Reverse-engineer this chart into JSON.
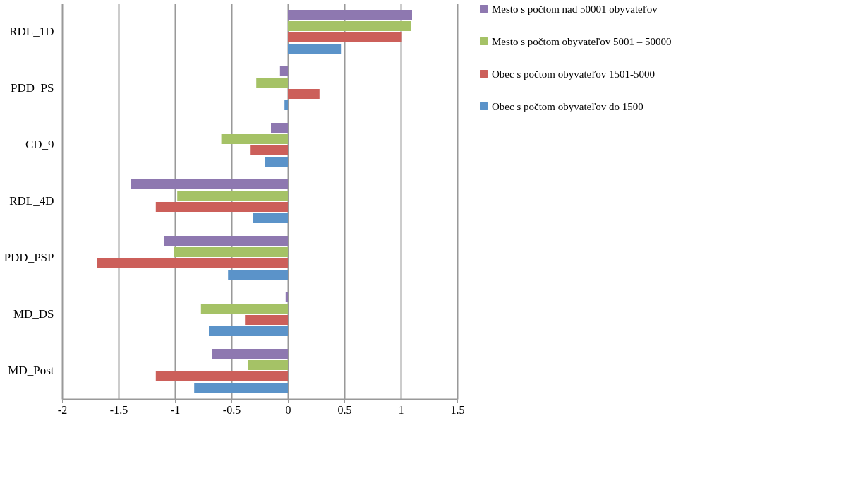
{
  "chart_data": {
    "type": "bar",
    "orientation": "horizontal",
    "categories": [
      "RDL_1D",
      "PDD_PS",
      "CD_9",
      "RDL_4D",
      "PDD_PSP",
      "MD_DS",
      "MD_Post"
    ],
    "series": [
      {
        "name": "Mesto s počtom nad 50001 obyvateľov",
        "color": "#8e78b0",
        "values": [
          1.1,
          -0.07,
          -0.15,
          -1.39,
          -1.1,
          -0.02,
          -0.67
        ]
      },
      {
        "name": "Mesto s počtom obyvateľov 5001 – 50000",
        "color": "#a5c266",
        "values": [
          1.09,
          -0.28,
          -0.59,
          -0.98,
          -1.01,
          -0.77,
          -0.35
        ]
      },
      {
        "name": "Obec s počtom obyvateľov 1501-5000",
        "color": "#cc5f5a",
        "values": [
          1.01,
          0.28,
          -0.33,
          -1.17,
          -1.69,
          -0.38,
          -1.17
        ]
      },
      {
        "name": "Obec s počtom obyvateľov do 1500",
        "color": "#5b93c9",
        "values": [
          0.47,
          -0.03,
          -0.2,
          -0.31,
          -0.53,
          -0.7,
          -0.83
        ]
      }
    ],
    "xlim": [
      -2,
      1.5
    ],
    "xticks": [
      -2,
      -1.5,
      -1,
      -0.5,
      0,
      0.5,
      1,
      1.5
    ],
    "grid": "x",
    "legend": "right"
  }
}
